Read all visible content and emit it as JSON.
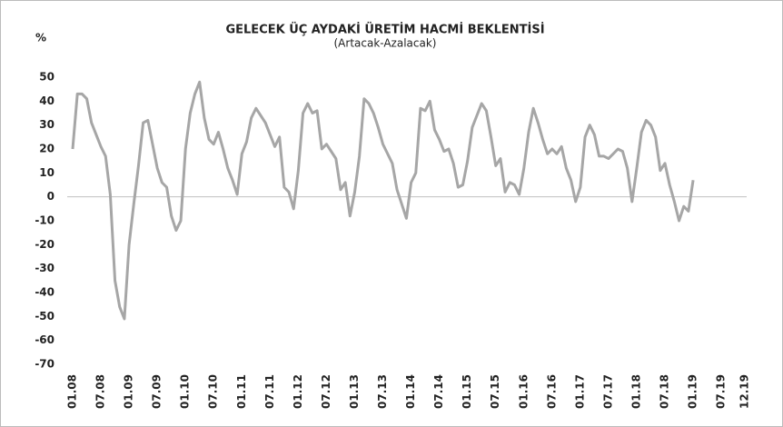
{
  "chart_data": {
    "type": "line",
    "title": "GELECEK ÜÇ AYDAKİ ÜRETİM HACMİ BEKLENTİSİ",
    "subtitle": "(Artacak-Azalacak)",
    "y_label": "%",
    "color": "#a6a6a6",
    "zero_line": true,
    "ylim": [
      -70,
      50
    ],
    "yticks": [
      -70,
      -60,
      -50,
      -40,
      -30,
      -20,
      -10,
      0,
      10,
      20,
      30,
      40,
      50
    ],
    "categories": [
      "01.08",
      null,
      null,
      null,
      null,
      null,
      "07.08",
      null,
      null,
      null,
      null,
      null,
      "01.09",
      null,
      null,
      null,
      null,
      null,
      "07.09",
      null,
      null,
      null,
      null,
      null,
      "01.10",
      null,
      null,
      null,
      null,
      null,
      "07.10",
      null,
      null,
      null,
      null,
      null,
      "01.11",
      null,
      null,
      null,
      null,
      null,
      "07.11",
      null,
      null,
      null,
      null,
      null,
      "01.12",
      null,
      null,
      null,
      null,
      null,
      "07.12",
      null,
      null,
      null,
      null,
      null,
      "01.13",
      null,
      null,
      null,
      null,
      null,
      "07.13",
      null,
      null,
      null,
      null,
      null,
      "01.14",
      null,
      null,
      null,
      null,
      null,
      "07.14",
      null,
      null,
      null,
      null,
      null,
      "01.15",
      null,
      null,
      null,
      null,
      null,
      "07.15",
      null,
      null,
      null,
      null,
      null,
      "01.16",
      null,
      null,
      null,
      null,
      null,
      "07.16",
      null,
      null,
      null,
      null,
      null,
      "01.17",
      null,
      null,
      null,
      null,
      null,
      "07.17",
      null,
      null,
      null,
      null,
      null,
      "01.18",
      null,
      null,
      null,
      null,
      null,
      "07.18",
      null,
      null,
      null,
      null,
      null,
      "01.19",
      null,
      null,
      null,
      null,
      null,
      "07.19",
      null,
      null,
      null,
      null,
      "12.19"
    ],
    "values": [
      20,
      43,
      43,
      41,
      31,
      26,
      21,
      17,
      1,
      -35,
      -46,
      -51,
      -20,
      -3,
      13,
      31,
      32,
      22,
      12,
      6,
      4,
      -8,
      -14,
      -10,
      20,
      35,
      43,
      48,
      33,
      24,
      22,
      27,
      20,
      12,
      7,
      1,
      18,
      23,
      33,
      37,
      34,
      31,
      26,
      21,
      25,
      4,
      2,
      -5,
      11,
      35,
      39,
      35,
      36,
      20,
      22,
      19,
      16,
      3,
      6,
      -8,
      2,
      17,
      41,
      39,
      35,
      29,
      22,
      18,
      14,
      3,
      -3,
      -9,
      6,
      10,
      37,
      36,
      40,
      28,
      24,
      19,
      20,
      14,
      4,
      5,
      15,
      29,
      34,
      39,
      36,
      25,
      13,
      16,
      2,
      6,
      5,
      1,
      12,
      27,
      37,
      31,
      24,
      18,
      20,
      18,
      21,
      12,
      7,
      -2,
      4,
      25,
      30,
      26,
      17,
      17,
      16,
      18,
      20,
      19,
      12,
      -2,
      12,
      27,
      32,
      30,
      25,
      11,
      14,
      5,
      -2,
      -10,
      -4,
      -6,
      7,
      null,
      null,
      null,
      null,
      null,
      null,
      null,
      null,
      null,
      null,
      null
    ]
  }
}
